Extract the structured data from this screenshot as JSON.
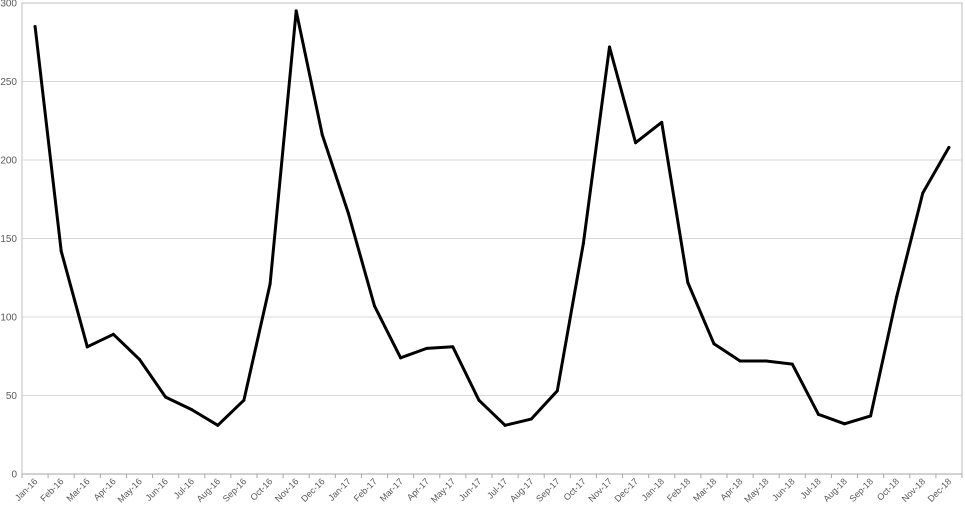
{
  "chart_data": {
    "type": "line",
    "title": "",
    "xlabel": "",
    "ylabel": "",
    "ylim": [
      0,
      300
    ],
    "yticks": [
      0,
      50,
      100,
      150,
      200,
      250,
      300
    ],
    "grid": "horizontal",
    "categories": [
      "Jan-16",
      "Feb-16",
      "Mar-16",
      "Apr-16",
      "May-16",
      "Jun-16",
      "Jul-16",
      "Aug-16",
      "Sep-16",
      "Oct-16",
      "Nov-16",
      "Dec-16",
      "Jan-17",
      "Feb-17",
      "Mar-17",
      "Apr-17",
      "May-17",
      "Jun-17",
      "Jul-17",
      "Aug-17",
      "Sep-17",
      "Oct-17",
      "Nov-17",
      "Dec-17",
      "Jan-18",
      "Feb-18",
      "Mar-18",
      "Apr-18",
      "May-18",
      "Jun-18",
      "Jul-18",
      "Aug-18",
      "Sep-18",
      "Oct-18",
      "Nov-18",
      "Dec-18"
    ],
    "series": [
      {
        "values": [
          285,
          142,
          81,
          89,
          73,
          49,
          41,
          31,
          47,
          121,
          295,
          216,
          166,
          107,
          74,
          80,
          81,
          47,
          31,
          35,
          53,
          147,
          272,
          211,
          224,
          122,
          83,
          72,
          72,
          70,
          38,
          32,
          37,
          113,
          179,
          208
        ],
        "color": "#000000"
      }
    ]
  }
}
